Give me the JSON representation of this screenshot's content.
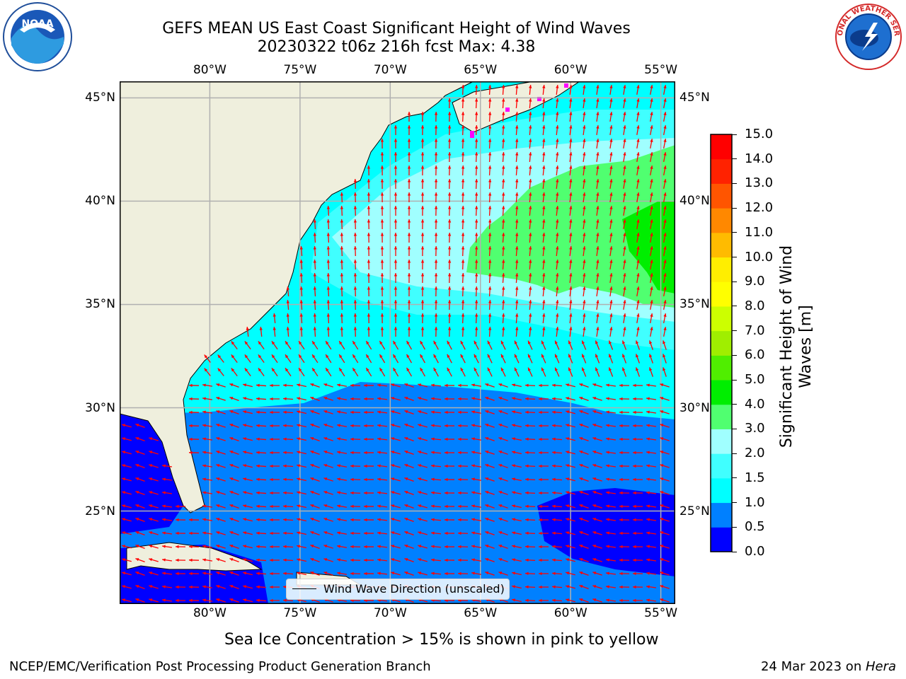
{
  "header": {
    "title_line1": "GEFS MEAN US East Coast Significant Height of Wind Waves",
    "title_line2": "20230322 t06z 216h fcst   Max: 4.38"
  },
  "logos": {
    "left": {
      "name": "noaa-logo",
      "text": "NOAA"
    },
    "right": {
      "name": "nws-logo",
      "text": "NATIONAL WEATHER SERVICE"
    }
  },
  "map": {
    "lon_range": [
      -85,
      -54.2
    ],
    "lat_range": [
      20.5,
      45.8
    ],
    "lon_ticks": [
      {
        "value": -80,
        "label": "80°W"
      },
      {
        "value": -75,
        "label": "75°W"
      },
      {
        "value": -70,
        "label": "70°W"
      },
      {
        "value": -65,
        "label": "65°W"
      },
      {
        "value": -60,
        "label": "60°W"
      },
      {
        "value": -55,
        "label": "55°W"
      }
    ],
    "lat_ticks": [
      {
        "value": 45,
        "label": "45°N"
      },
      {
        "value": 40,
        "label": "40°N"
      },
      {
        "value": 35,
        "label": "35°N"
      },
      {
        "value": 30,
        "label": "30°N"
      },
      {
        "value": 25,
        "label": "25°N"
      }
    ],
    "legend_label": "Wind Wave Direction (unscaled)",
    "colors": {
      "land": "#efefdd",
      "grid": "#b0b0b0",
      "arrow": "#ff0000",
      "ice": "#ff00ff"
    }
  },
  "colorbar": {
    "title": "Significant Height of Wind Waves [m]",
    "ticks": [
      "0.0",
      "0.5",
      "1.0",
      "1.5",
      "2.0",
      "3.0",
      "4.0",
      "5.0",
      "6.0",
      "7.0",
      "8.0",
      "9.0",
      "10.0",
      "11.0",
      "12.0",
      "13.0",
      "14.0",
      "15.0"
    ],
    "colors": [
      "#0000ff",
      "#0080ff",
      "#00ffff",
      "#40ffff",
      "#a0ffff",
      "#50ff70",
      "#00ee00",
      "#50ee00",
      "#a0ee00",
      "#ccff00",
      "#ffff00",
      "#ffee00",
      "#ffbb00",
      "#ff8800",
      "#ff5500",
      "#ff2200",
      "#ff0000"
    ]
  },
  "notes": {
    "sea_ice": "Sea Ice Concentration > 15% is shown in pink to yellow"
  },
  "footer": {
    "left": "NCEP/EMC/Verification Post Processing Product Generation Branch",
    "right_prefix": "24 Mar 2023 on ",
    "right_host": "Hera"
  }
}
